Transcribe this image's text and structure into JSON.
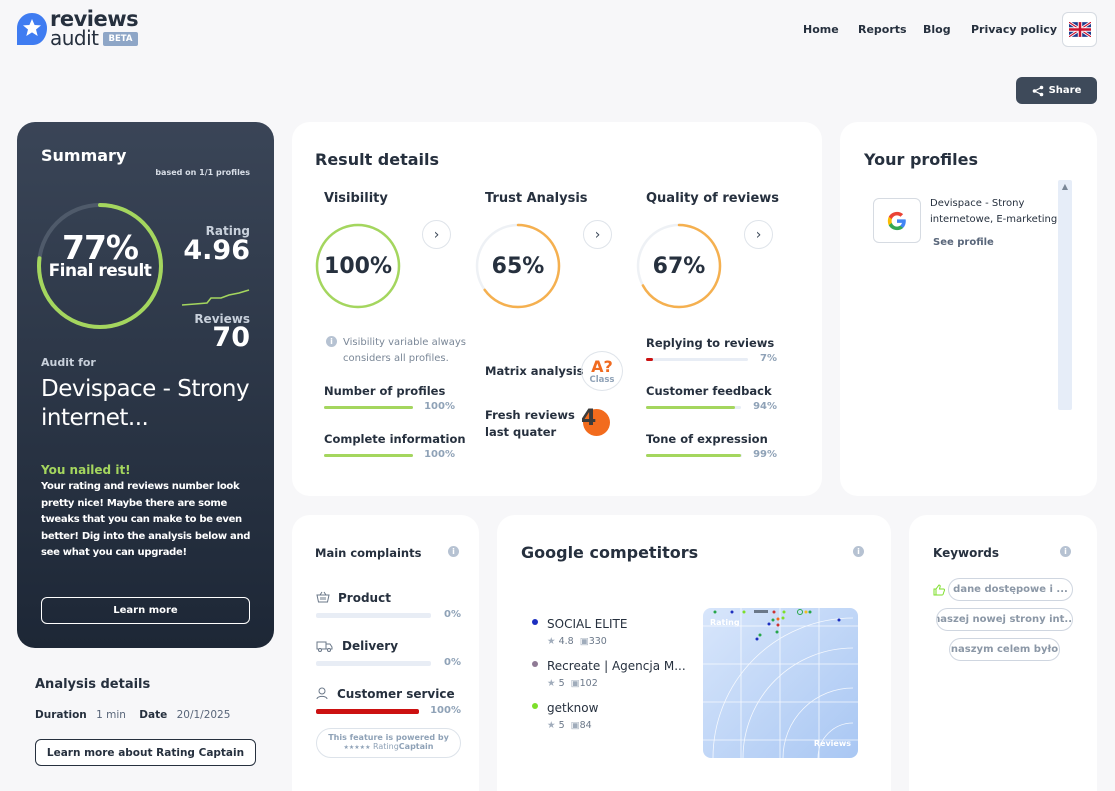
{
  "brand": {
    "name_line1": "reviews",
    "name_line2": "audit",
    "badge": "BETA"
  },
  "nav": {
    "items": [
      "Home",
      "Reports",
      "Blog",
      "Privacy policy"
    ]
  },
  "share_label": "Share",
  "summary": {
    "title": "Summary",
    "based_on": "based on 1/1 profiles",
    "final_pct": "77%",
    "final_label": "Final result",
    "final_value": 0.77,
    "rating_label": "Rating",
    "rating_value": "4.96",
    "reviews_label": "Reviews",
    "reviews_value": "70",
    "audit_for_label": "Audit for",
    "audit_for_name": "Devispace - Strony internet...",
    "verdict_title": "You nailed it!",
    "verdict_text": "Your rating and reviews number look pretty nice! Maybe there are some tweaks that you can make to be even better! Dig into the analysis below and see what you can upgrade!",
    "learn_more": "Learn more"
  },
  "analysis_details": {
    "title": "Analysis details",
    "duration_label": "Duration",
    "duration_value": "1 min",
    "date_label": "Date",
    "date_value": "20/1/2025",
    "captain_button": "Learn more about Rating Captain"
  },
  "result_details": {
    "title": "Result details",
    "visibility": {
      "title": "Visibility",
      "pct": "100%",
      "value": 1.0,
      "note": "Visibility variable always considers all profiles.",
      "metrics": [
        {
          "label": "Number of profiles",
          "value": "100%",
          "fill": 1.0
        },
        {
          "label": "Complete information",
          "value": "100%",
          "fill": 1.0
        }
      ]
    },
    "trust": {
      "title": "Trust Analysis",
      "pct": "65%",
      "value": 0.65,
      "matrix_label": "Matrix analysis",
      "matrix_grade": "A?",
      "matrix_class": "Class",
      "fresh_label_line1": "Fresh reviews",
      "fresh_label_line2": "last quater",
      "fresh_value": "4"
    },
    "quality": {
      "title": "Quality of reviews",
      "pct": "67%",
      "value": 0.67,
      "metrics": [
        {
          "label": "Replying to reviews",
          "value": "7%",
          "fill": 0.07
        },
        {
          "label": "Customer feedback",
          "value": "94%",
          "fill": 0.94
        },
        {
          "label": "Tone of expression",
          "value": "99%",
          "fill": 0.99
        }
      ]
    }
  },
  "profiles": {
    "title": "Your profiles",
    "items": [
      {
        "name_line1": "Devispace - Strony",
        "name_line2": "internetowe, E-marketing",
        "link": "See profile",
        "icon": "google-icon"
      }
    ]
  },
  "complaints": {
    "title": "Main complaints",
    "items": [
      {
        "label": "Product",
        "value": "0%",
        "fill": 0.0,
        "icon": "basket-icon"
      },
      {
        "label": "Delivery",
        "value": "0%",
        "fill": 0.0,
        "icon": "truck-icon"
      },
      {
        "label": "Customer service",
        "value": "100%",
        "fill": 1.0,
        "icon": "person-icon"
      }
    ],
    "powered_line1": "This feature is powered by",
    "powered_brand_a": "Rating",
    "powered_brand_b": "Captain"
  },
  "competitors": {
    "title": "Google competitors",
    "items": [
      {
        "name": "SOCIAL ELITE",
        "rating": "4.8",
        "reviews": "330",
        "color": "#1c2fbf"
      },
      {
        "name": "Recreate | Agencja M...",
        "rating": "5",
        "reviews": "102",
        "color": "#8f7a95"
      },
      {
        "name": "getknow",
        "rating": "5",
        "reviews": "84",
        "color": "#7ddf2a"
      }
    ],
    "map_rating_label": "Rating",
    "map_reviews_label": "Reviews"
  },
  "keywords": {
    "title": "Keywords",
    "items": [
      "dane dostępowe i ...",
      "naszej nowej strony int...",
      "naszym celem było"
    ]
  },
  "colors": {
    "green": "#a4d65e",
    "orange": "#f5b04f",
    "red": "#cc1111",
    "dark": "#26303e"
  }
}
